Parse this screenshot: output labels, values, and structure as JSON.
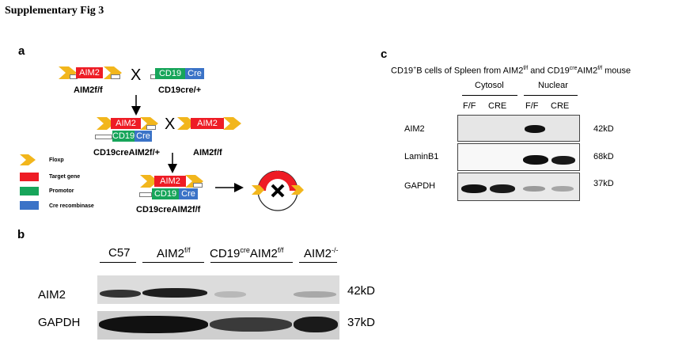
{
  "figure_title": "Supplementary Fig 3",
  "panel_a": {
    "label": "a",
    "cross_symbol": "X",
    "row1": {
      "left_gene": "AIM2",
      "left_caption": "AIM2f/f",
      "right_gene1": "CD19",
      "right_gene2": "Cre",
      "right_caption": "CD19cre/+"
    },
    "row2": {
      "left_gene1": "AIM2",
      "left_gene2": "CD19",
      "left_gene3": "Cre",
      "left_caption": "CD19creAIM2f/+",
      "right_gene": "AIM2",
      "right_caption": "AIM2f/f"
    },
    "row3": {
      "gene1": "AIM2",
      "gene2": "CD19",
      "gene3": "Cre",
      "caption": "CD19creAIM2f/f",
      "deleted_label": "AIM2"
    },
    "legend": {
      "floxp": "Floxp",
      "target": "Target gene",
      "promotor": "Promotor",
      "cre": "Cre recombinase"
    },
    "colors": {
      "aim2": "#ee1c25",
      "cd19": "#17a55a",
      "cre": "#3b73c7",
      "floxp": "#f2b61c"
    }
  },
  "panel_b": {
    "label": "b",
    "groups": [
      "C57",
      "AIM2",
      "CD19",
      "AIM2",
      "AIM2"
    ],
    "group_sup": {
      "aim2ff": "f/f",
      "cd19cre": "cre",
      "cd19aim2": "f/f",
      "ko": "-/-"
    },
    "rows": [
      {
        "name": "AIM2",
        "size": "42kD"
      },
      {
        "name": "GAPDH",
        "size": "37kD"
      }
    ]
  },
  "panel_c": {
    "label": "c",
    "heading_parts": [
      "CD19",
      "+",
      "B cells of Spleen from AIM2",
      "f/f",
      " and CD19",
      "cre",
      "AIM2",
      "f/f",
      " mouse"
    ],
    "fractions": [
      "Cytosol",
      "Nuclear"
    ],
    "lanes": [
      "F/F",
      "CRE",
      "F/F",
      "CRE"
    ],
    "rows": [
      {
        "name": "AIM2",
        "size": "42kD"
      },
      {
        "name": "LaminB1",
        "size": "68kD"
      },
      {
        "name": "GAPDH",
        "size": "37kD"
      }
    ]
  }
}
